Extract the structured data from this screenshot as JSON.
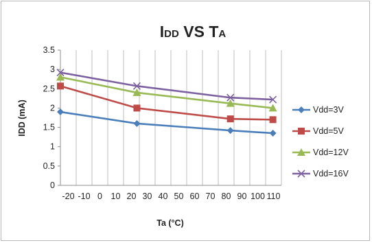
{
  "chart_data": {
    "type": "line",
    "title_parts": [
      {
        "text": "I",
        "big": true
      },
      {
        "text": "DD",
        "big": false
      },
      {
        "text": " VS ",
        "big": true
      },
      {
        "text": "T",
        "big": true
      },
      {
        "text": "A",
        "big": false
      }
    ],
    "xlabel": "Ta (°C)",
    "ylabel": "IDD (mA)",
    "xlim": [
      -20,
      110
    ],
    "ylim": [
      0,
      3.5
    ],
    "x_ticks": [
      "-20",
      "-10",
      "0",
      "10",
      "20",
      "30",
      "40",
      "50",
      "60",
      "70",
      "80",
      "90",
      "100",
      "110"
    ],
    "y_ticks": [
      "0",
      "0.5",
      "1",
      "1.5",
      "2",
      "2.5",
      "3",
      "3.5"
    ],
    "grid": "vertical",
    "legend_position": "right",
    "series": [
      {
        "name": "Vdd=3V",
        "color": "#4a7ebb",
        "marker": "diamond",
        "x": [
          -20,
          25,
          80,
          105
        ],
        "y": [
          1.9,
          1.6,
          1.42,
          1.35
        ]
      },
      {
        "name": "Vdd=5V",
        "color": "#be4b48",
        "marker": "square",
        "x": [
          -20,
          25,
          80,
          105
        ],
        "y": [
          2.57,
          2.0,
          1.72,
          1.7
        ]
      },
      {
        "name": "Vdd=12V",
        "color": "#98b954",
        "marker": "triangle",
        "x": [
          -20,
          25,
          80,
          105
        ],
        "y": [
          2.8,
          2.4,
          2.12,
          2.0
        ]
      },
      {
        "name": "Vdd=16V",
        "color": "#7d60a0",
        "marker": "x",
        "x": [
          -20,
          25,
          80,
          105
        ],
        "y": [
          2.92,
          2.57,
          2.27,
          2.22
        ]
      }
    ]
  }
}
